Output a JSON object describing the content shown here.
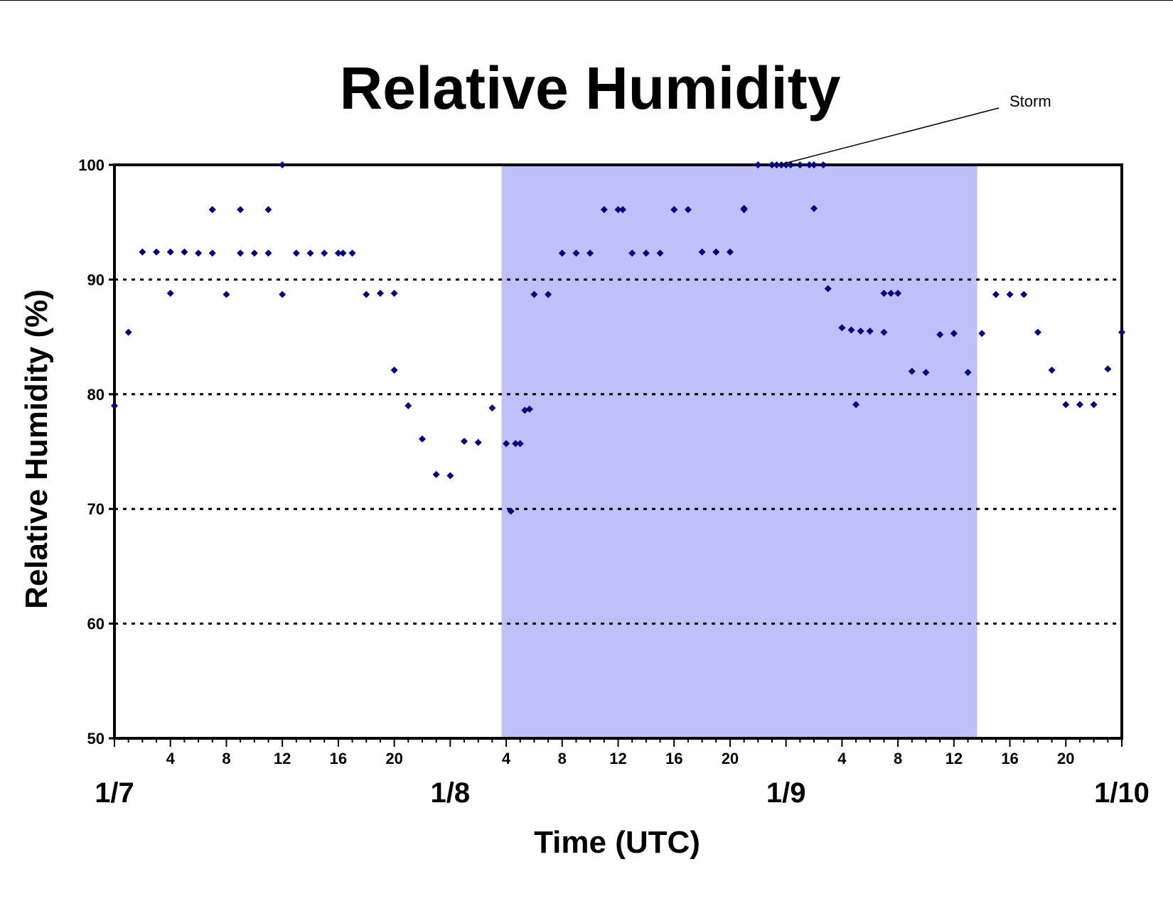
{
  "chart_data": {
    "type": "scatter",
    "title": "Relative Humidity",
    "xlabel": "Time (UTC)",
    "ylabel": "Relative Humidity (%)",
    "ylim": [
      50,
      100
    ],
    "xlim": [
      "1/7 00:00",
      "1/10 00:00"
    ],
    "yticks": [
      50,
      60,
      70,
      80,
      90,
      100
    ],
    "gridlines": {
      "style": "dotted",
      "at": [
        60,
        70,
        80,
        90
      ]
    },
    "hour_tick_labels": [
      "4",
      "8",
      "12",
      "16",
      "20",
      "4",
      "8",
      "12",
      "16",
      "20",
      "4",
      "8",
      "12",
      "16",
      "20"
    ],
    "date_tick_labels": [
      "1/7",
      "1/8",
      "1/9",
      "1/10"
    ],
    "shaded_region": {
      "x_start": "1/8 03:40",
      "x_end": "1/9 13:40",
      "color": "#bfbff9"
    },
    "annotation": {
      "text": "Storm",
      "points_to": {
        "x": "1/9 00:00",
        "y": 100
      }
    },
    "marker_color": "#00007f",
    "series": [
      {
        "x": [
          "1/7 00:00",
          "1/7 01:00",
          "1/7 02:00",
          "1/7 03:00",
          "1/7 04:00",
          "1/7 04:00",
          "1/7 05:00",
          "1/7 06:00",
          "1/7 07:00",
          "1/7 07:00",
          "1/7 07:00",
          "1/7 08:00",
          "1/7 09:00",
          "1/7 09:00",
          "1/7 10:00",
          "1/7 11:00",
          "1/7 11:00",
          "1/7 12:00",
          "1/7 12:00",
          "1/7 13:00",
          "1/7 14:00",
          "1/7 15:00",
          "1/7 16:00",
          "1/7 16:20",
          "1/7 17:00",
          "1/7 18:00",
          "1/7 19:00",
          "1/7 20:00",
          "1/7 20:00",
          "1/7 21:00",
          "1/7 22:00",
          "1/7 23:00",
          "1/8 00:00",
          "1/8 01:00",
          "1/8 02:00",
          "1/8 03:00",
          "1/8 04:00",
          "1/8 04:20",
          "1/8 04:40",
          "1/8 05:00",
          "1/8 05:20",
          "1/8 05:40",
          "1/8 06:00",
          "1/8 07:00",
          "1/8 08:00",
          "1/8 09:00",
          "1/8 10:00",
          "1/8 11:00",
          "1/8 12:00",
          "1/8 12:20",
          "1/8 13:00",
          "1/8 14:00",
          "1/8 15:00",
          "1/8 16:00",
          "1/8 16:00",
          "1/8 17:00",
          "1/8 18:00",
          "1/8 19:00",
          "1/8 20:00",
          "1/8 21:00",
          "1/8 21:00",
          "1/8 22:00",
          "1/8 23:00",
          "1/8 23:20",
          "1/8 23:40",
          "1/9 00:00",
          "1/9 00:20",
          "1/9 01:00",
          "1/9 01:40",
          "1/9 02:00",
          "1/9 02:00",
          "1/9 02:40",
          "1/9 03:00",
          "1/9 04:00",
          "1/9 04:40",
          "1/9 05:00",
          "1/9 05:20",
          "1/9 06:00",
          "1/9 07:00",
          "1/9 07:00",
          "1/9 07:30",
          "1/9 08:00",
          "1/9 09:00",
          "1/9 10:00",
          "1/9 11:00",
          "1/9 12:00",
          "1/9 12:00",
          "1/9 13:00",
          "1/9 14:00",
          "1/9 15:00",
          "1/9 16:00",
          "1/9 17:00",
          "1/9 18:00",
          "1/9 19:00",
          "1/9 20:00",
          "1/9 21:00",
          "1/9 22:00",
          "1/9 23:00",
          "1/10 00:00"
        ],
        "y": [
          79,
          85.4,
          92.4,
          92.4,
          92.4,
          88.8,
          92.4,
          92.3,
          92.3,
          96.1,
          96.1,
          88.7,
          96.1,
          92.3,
          92.3,
          96.1,
          92.3,
          100,
          88.7,
          92.3,
          92.3,
          92.3,
          92.3,
          92.3,
          92.3,
          88.7,
          88.8,
          88.8,
          82.1,
          79,
          76.1,
          73,
          72.9,
          75.9,
          75.8,
          78.8,
          75.7,
          69.8,
          75.7,
          75.7,
          78.6,
          78.7,
          88.7,
          88.7,
          92.3,
          92.3,
          92.3,
          96.1,
          96.1,
          96.1,
          92.3,
          92.3,
          92.3,
          96.1,
          96.1,
          96.1,
          92.4,
          92.4,
          92.4,
          96.2,
          96.1,
          100,
          100,
          100,
          100,
          100,
          100,
          100,
          100,
          100,
          96.2,
          100,
          89.2,
          85.8,
          85.6,
          79.1,
          85.5,
          85.5,
          88.8,
          85.4,
          88.8,
          88.8,
          82,
          81.9,
          85.2,
          85.3,
          85.3,
          81.9,
          85.3,
          88.7,
          88.7,
          88.7,
          85.4,
          82.1,
          79.1,
          79.1,
          79.1,
          82.2,
          85.4
        ]
      }
    ]
  }
}
